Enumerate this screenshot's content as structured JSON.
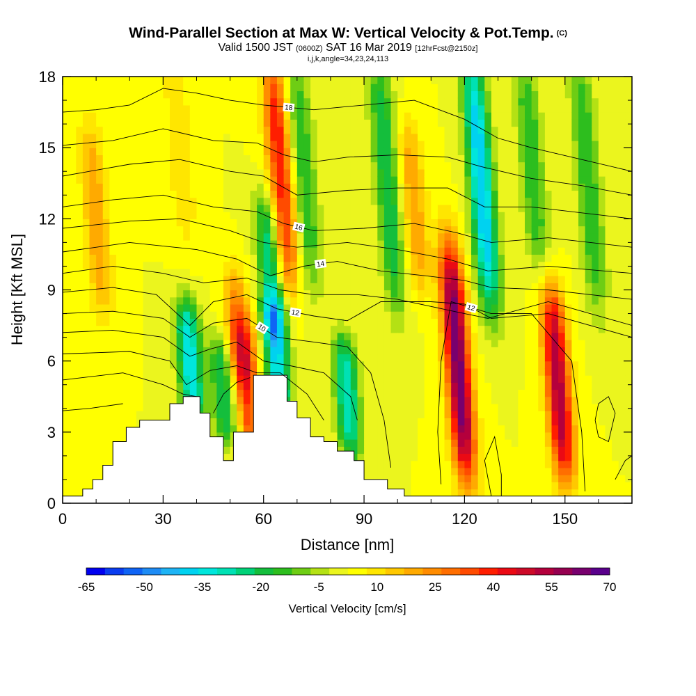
{
  "header": {
    "title": "Wind-Parallel Section at Max W: Vertical Velocity & Pot.Temp.",
    "title_tag": "(C)",
    "valid_prefix": "Valid 1500 JST",
    "valid_zulu": "(0600Z)",
    "valid_date": "SAT 16 Mar 2019",
    "forecast": "[12hrFcst@2150z]",
    "indices": "i,j,k,angle=34,23,24,113"
  },
  "chart_data": {
    "type": "heatmap",
    "title": "Wind-Parallel Section at Max W: Vertical Velocity & Pot.Temp.",
    "xlabel": "Distance [nm]",
    "ylabel": "Height [Kft MSL]",
    "xlim": [
      0,
      170
    ],
    "ylim": [
      0,
      18
    ],
    "x_ticks": [
      "0",
      "30",
      "60",
      "90",
      "120",
      "150"
    ],
    "y_ticks": [
      "0",
      "3",
      "6",
      "9",
      "12",
      "15",
      "18"
    ],
    "colorbar": {
      "title": "Vertical Velocity [cm/s]",
      "tick_labels": [
        "-65",
        "-50",
        "-35",
        "-20",
        "-5",
        "10",
        "25",
        "40",
        "55",
        "70"
      ],
      "levels": [
        -65,
        -60,
        -55,
        -50,
        -45,
        -40,
        -35,
        -30,
        -25,
        -20,
        -15,
        -10,
        -5,
        0,
        5,
        10,
        15,
        20,
        25,
        30,
        35,
        40,
        45,
        50,
        55,
        60,
        65,
        70
      ],
      "colors": [
        "#0000f0",
        "#0a3cf0",
        "#0f64f5",
        "#1e8cf5",
        "#1eb4f5",
        "#00d2f0",
        "#00e6dc",
        "#00e1b4",
        "#00d278",
        "#14be3c",
        "#2dbe1e",
        "#6ecd14",
        "#b4e114",
        "#ebf51e",
        "#ffff00",
        "#ffe600",
        "#ffc800",
        "#ffaa00",
        "#ff8c00",
        "#ff6e00",
        "#ff4b00",
        "#ff1e00",
        "#eb0a14",
        "#cd0a28",
        "#b4003c",
        "#960050",
        "#78006e",
        "#5a008c"
      ]
    },
    "velocity_features": [
      {
        "x": 65,
        "z_range": [
          10,
          18
        ],
        "value": 40
      },
      {
        "x": 64,
        "z_range": [
          4.5,
          7.5
        ],
        "value": -40
      },
      {
        "x": 62,
        "z_range": [
          8,
          12
        ],
        "value": -30
      },
      {
        "x": 55,
        "z_range": [
          3,
          7
        ],
        "value": 35
      },
      {
        "x": 52,
        "z_range": [
          6,
          9
        ],
        "value": 20
      },
      {
        "x": 38,
        "z_range": [
          4.5,
          7.5
        ],
        "value": -40
      },
      {
        "x": 48,
        "z_range": [
          3.5,
          6
        ],
        "value": -25
      },
      {
        "x": 85,
        "z_range": [
          3,
          6
        ],
        "value": -35
      },
      {
        "x": 125,
        "z_range": [
          9,
          18
        ],
        "value": -45
      },
      {
        "x": 118,
        "z_range": [
          2,
          10
        ],
        "value": 65
      },
      {
        "x": 148,
        "z_range": [
          2,
          8
        ],
        "value": 55
      },
      {
        "x": 10,
        "z_range": [
          9,
          15
        ],
        "value": 20
      },
      {
        "x": 105,
        "z_range": [
          10,
          15
        ],
        "value": 20
      },
      {
        "x": 72,
        "z_range": [
          10,
          18
        ],
        "value": -20
      },
      {
        "x": 97,
        "z_range": [
          9,
          18
        ],
        "value": -25
      },
      {
        "x": 140,
        "z_range": [
          11,
          18
        ],
        "value": -20
      },
      {
        "x": 157,
        "z_range": [
          9,
          18
        ],
        "value": -20
      },
      {
        "x": 35,
        "z_range": [
          12,
          18
        ],
        "value": 10
      }
    ],
    "terrain": {
      "x": [
        0,
        6,
        6,
        9,
        9,
        12,
        12,
        15,
        15,
        19,
        19,
        23,
        23,
        25,
        25,
        29,
        29,
        32,
        32,
        36,
        36,
        41,
        41,
        44,
        44,
        48,
        48,
        51,
        51,
        57,
        57,
        67,
        67,
        70,
        70,
        74,
        74,
        78,
        78,
        82,
        82,
        87,
        87,
        90,
        90,
        97,
        97,
        102,
        102,
        170
      ],
      "z": [
        0.3,
        0.3,
        0.6,
        0.6,
        1.0,
        1.0,
        1.6,
        1.6,
        2.6,
        2.6,
        3.2,
        3.2,
        3.5,
        3.5,
        3.5,
        3.5,
        3.5,
        3.5,
        4.2,
        4.2,
        4.5,
        4.5,
        3.8,
        3.8,
        2.8,
        2.8,
        1.8,
        1.8,
        3.0,
        3.0,
        5.4,
        5.4,
        4.3,
        4.3,
        3.6,
        3.6,
        2.8,
        2.8,
        2.6,
        2.6,
        2.2,
        2.2,
        1.8,
        1.8,
        1.0,
        1.0,
        0.6,
        0.6,
        0.3,
        0.3
      ]
    },
    "contours": [
      {
        "label": "18",
        "points": [
          [
            0,
            16.5
          ],
          [
            10,
            16.6
          ],
          [
            20,
            16.8
          ],
          [
            30,
            17.5
          ],
          [
            40,
            17.3
          ],
          [
            50,
            17.0
          ],
          [
            60,
            16.8
          ],
          [
            75,
            16.6
          ],
          [
            90,
            16.8
          ],
          [
            105,
            17.0
          ],
          [
            120,
            16.2
          ],
          [
            130,
            15.4
          ],
          [
            140,
            15.0
          ],
          [
            155,
            14.5
          ],
          [
            170,
            14.0
          ]
        ]
      },
      {
        "label": "",
        "points": [
          [
            0,
            15.1
          ],
          [
            15,
            15.3
          ],
          [
            30,
            15.8
          ],
          [
            45,
            15.3
          ],
          [
            58,
            15.2
          ],
          [
            66,
            14.7
          ],
          [
            75,
            14.4
          ],
          [
            85,
            14.6
          ],
          [
            100,
            14.7
          ],
          [
            115,
            14.6
          ],
          [
            125,
            14.2
          ],
          [
            140,
            13.7
          ],
          [
            155,
            13.4
          ],
          [
            170,
            13.0
          ]
        ]
      },
      {
        "label": "",
        "points": [
          [
            0,
            13.8
          ],
          [
            20,
            14.3
          ],
          [
            35,
            14.5
          ],
          [
            50,
            14.0
          ],
          [
            60,
            13.8
          ],
          [
            70,
            13.0
          ],
          [
            85,
            13.2
          ],
          [
            100,
            13.3
          ],
          [
            115,
            13.3
          ],
          [
            126,
            12.5
          ],
          [
            140,
            12.5
          ],
          [
            170,
            12.0
          ]
        ]
      },
      {
        "label": "16",
        "points": [
          [
            0,
            12.5
          ],
          [
            15,
            12.8
          ],
          [
            30,
            13.0
          ],
          [
            45,
            12.5
          ],
          [
            58,
            12.3
          ],
          [
            66,
            11.8
          ],
          [
            75,
            11.5
          ],
          [
            90,
            11.6
          ],
          [
            105,
            11.8
          ],
          [
            118,
            11.4
          ],
          [
            128,
            11.0
          ],
          [
            145,
            11.2
          ],
          [
            170,
            10.8
          ]
        ]
      },
      {
        "label": "",
        "points": [
          [
            0,
            11.6
          ],
          [
            20,
            11.9
          ],
          [
            35,
            12.0
          ],
          [
            50,
            11.5
          ],
          [
            60,
            11.0
          ],
          [
            70,
            10.8
          ],
          [
            85,
            11.0
          ],
          [
            100,
            10.7
          ],
          [
            115,
            10.3
          ],
          [
            127,
            9.8
          ],
          [
            145,
            10.0
          ],
          [
            170,
            9.7
          ]
        ]
      },
      {
        "label": "14",
        "points": [
          [
            0,
            10.6
          ],
          [
            20,
            11.0
          ],
          [
            40,
            10.7
          ],
          [
            52,
            10.3
          ],
          [
            62,
            9.6
          ],
          [
            72,
            10.0
          ],
          [
            82,
            10.2
          ],
          [
            95,
            9.8
          ],
          [
            108,
            9.6
          ],
          [
            120,
            9.4
          ],
          [
            128,
            9.1
          ],
          [
            145,
            9.0
          ],
          [
            170,
            8.6
          ]
        ]
      },
      {
        "label": "",
        "points": [
          [
            0,
            9.7
          ],
          [
            15,
            10.0
          ],
          [
            30,
            9.7
          ],
          [
            42,
            9.3
          ],
          [
            55,
            9.5
          ],
          [
            65,
            9.0
          ],
          [
            75,
            8.8
          ],
          [
            88,
            8.8
          ],
          [
            100,
            8.6
          ],
          [
            110,
            8.3
          ],
          [
            120,
            8.0
          ],
          [
            127,
            7.8
          ],
          [
            145,
            8.5
          ],
          [
            170,
            7.5
          ]
        ]
      },
      {
        "label": "12",
        "points": [
          [
            0,
            8.9
          ],
          [
            15,
            9.1
          ],
          [
            28,
            8.8
          ],
          [
            38,
            7.5
          ],
          [
            45,
            8.5
          ],
          [
            55,
            8.8
          ],
          [
            64,
            8.2
          ],
          [
            75,
            7.9
          ],
          [
            85,
            7.7
          ],
          [
            95,
            8.5
          ],
          [
            110,
            8.5
          ],
          [
            120,
            8.4
          ],
          [
            128,
            7.8
          ],
          [
            145,
            8.0
          ],
          [
            170,
            7.0
          ]
        ]
      },
      {
        "label": "10",
        "points": [
          [
            0,
            8.0
          ],
          [
            15,
            8.1
          ],
          [
            30,
            7.8
          ],
          [
            38,
            7.0
          ],
          [
            45,
            7.6
          ],
          [
            55,
            7.8
          ],
          [
            64,
            7.0
          ],
          [
            75,
            6.8
          ],
          [
            85,
            6.6
          ],
          [
            92,
            5.5
          ],
          [
            96,
            3.5
          ],
          [
            98,
            1.5
          ]
        ]
      },
      {
        "label": "",
        "points": [
          [
            0,
            7.2
          ],
          [
            15,
            7.3
          ],
          [
            30,
            7.0
          ],
          [
            38,
            6.2
          ],
          [
            44,
            6.5
          ],
          [
            52,
            6.8
          ],
          [
            60,
            6.0
          ],
          [
            68,
            5.8
          ],
          [
            78,
            5.5
          ],
          [
            86,
            4.5
          ],
          [
            88,
            3.5
          ]
        ]
      },
      {
        "label": "",
        "points": [
          [
            0,
            6.3
          ],
          [
            20,
            6.4
          ],
          [
            32,
            6.0
          ],
          [
            37,
            5.0
          ],
          [
            44,
            5.6
          ],
          [
            52,
            5.8
          ],
          [
            58,
            5.5
          ],
          [
            65,
            5.5
          ],
          [
            73,
            4.6
          ],
          [
            78,
            3.5
          ]
        ]
      },
      {
        "label": "",
        "points": [
          [
            0,
            5.2
          ],
          [
            18,
            5.5
          ],
          [
            30,
            5.0
          ],
          [
            36,
            4.6
          ],
          [
            40,
            4.5
          ]
        ]
      },
      {
        "label": "",
        "points": [
          [
            45,
            3.8
          ],
          [
            48,
            4.6
          ],
          [
            52,
            5.1
          ],
          [
            56,
            5.3
          ]
        ]
      },
      {
        "label": "12",
        "points": [
          [
            113,
            0.8
          ],
          [
            112,
            3.0
          ],
          [
            113,
            6.0
          ],
          [
            116,
            8.5
          ],
          [
            128,
            8.0
          ],
          [
            140,
            8.0
          ],
          [
            152,
            6.0
          ],
          [
            155,
            3.0
          ],
          [
            156,
            0.5
          ]
        ]
      },
      {
        "label": "",
        "points": [
          [
            0,
            3.9
          ],
          [
            8,
            4.0
          ],
          [
            18,
            4.2
          ]
        ]
      },
      {
        "label": "",
        "points": [
          [
            128,
            0.3
          ],
          [
            126,
            1.8
          ],
          [
            129,
            2.8
          ],
          [
            131,
            1.2
          ],
          [
            131,
            0.3
          ]
        ]
      },
      {
        "label": "",
        "points": [
          [
            160,
            4.2
          ],
          [
            163,
            4.5
          ],
          [
            165,
            3.8
          ],
          [
            163,
            2.6
          ],
          [
            160,
            2.8
          ],
          [
            159,
            3.5
          ],
          [
            160,
            4.2
          ]
        ]
      },
      {
        "label": "",
        "points": [
          [
            165,
            1.0
          ],
          [
            168,
            1.8
          ],
          [
            170,
            2.0
          ]
        ]
      }
    ]
  }
}
